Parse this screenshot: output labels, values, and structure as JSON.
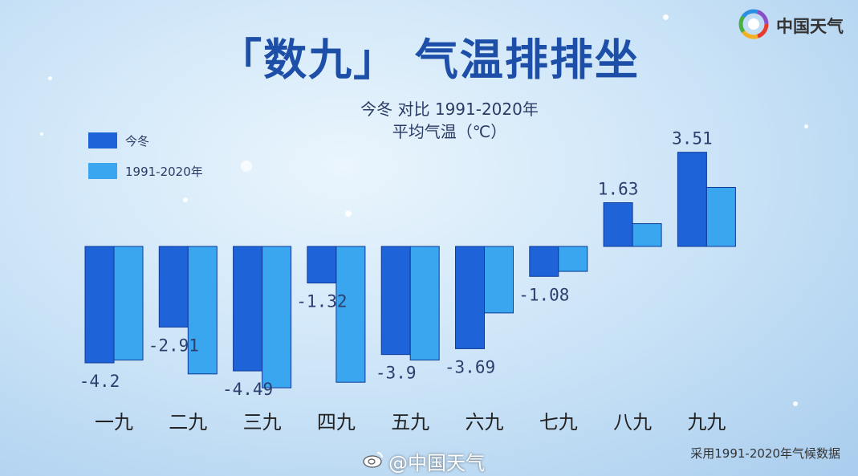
{
  "title": "「数九」  气温排排坐",
  "subtitle_line1": "今冬 对比 1991-2020年",
  "subtitle_line2": "平均气温（℃）",
  "brand": {
    "name": "中国天气",
    "logo_icon": "china-weather-logo-icon"
  },
  "source_note": "采用1991-2020年气候数据",
  "watermark": "@中国天气",
  "colors": {
    "current": "#1f63d8",
    "normal": "#3aa6f0"
  },
  "chart_data": {
    "type": "bar",
    "categories": [
      "一九",
      "二九",
      "三九",
      "四九",
      "五九",
      "六九",
      "七九",
      "八九",
      "九九"
    ],
    "series": [
      {
        "name": "今冬",
        "values": [
          -4.2,
          -2.91,
          -4.49,
          -1.32,
          -3.9,
          -3.69,
          -1.08,
          1.63,
          3.51
        ],
        "labels": [
          "-4.2",
          "-2.91",
          "-4.49",
          "-1.32",
          "-3.9",
          "-3.69",
          "-1.08",
          "1.63",
          "3.51"
        ]
      },
      {
        "name": "1991-2020年",
        "values": [
          -4.1,
          -4.6,
          -5.1,
          -4.9,
          -4.1,
          -2.4,
          -0.9,
          0.85,
          2.2
        ]
      }
    ],
    "ylim": [
      -5.3,
      3.8
    ],
    "grid": false,
    "legend": "top-left"
  }
}
